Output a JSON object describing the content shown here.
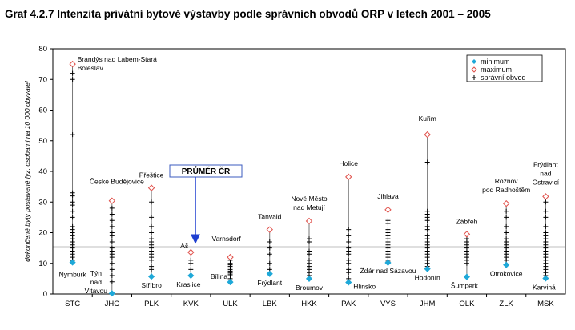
{
  "chart_data": {
    "type": "scatter",
    "title": "Graf 4.2.7 Intenzita privátní bytové výstavby podle správních obvodů ORP v letech 2001 – 2005",
    "ylabel": "dokončené byty postavené fyz. osobami na 10 000 obyvatel",
    "ylim": [
      0,
      80
    ],
    "yticks": [
      0,
      10,
      20,
      30,
      40,
      50,
      60,
      70,
      80
    ],
    "grid": false,
    "legend_position": "top-right",
    "categories": [
      "STC",
      "JHC",
      "PLK",
      "KVK",
      "ULK",
      "LBK",
      "HKK",
      "PAK",
      "VYS",
      "JHM",
      "OLK",
      "ZLK",
      "MSK"
    ],
    "average": {
      "label": "PRŮMĚR ČR",
      "value": 15.3
    },
    "series": [
      {
        "name": "minimum",
        "values": [
          10.3,
          0.2,
          5.7,
          6.0,
          3.9,
          6.6,
          5.0,
          3.8,
          10.2,
          8.2,
          5.6,
          9.5,
          5.1
        ]
      },
      {
        "name": "maximum",
        "values": [
          75.0,
          30.4,
          34.6,
          13.6,
          12.0,
          21.0,
          23.8,
          38.2,
          27.5,
          52.0,
          19.5,
          29.5,
          31.8
        ]
      },
      {
        "name": "správní obvod",
        "values": [
          [
            72,
            70,
            52,
            33,
            32,
            30,
            29,
            27,
            25,
            22,
            21,
            20,
            19,
            18,
            17,
            17,
            16,
            15,
            14,
            13,
            12,
            11,
            11
          ],
          [
            28,
            26,
            24,
            22,
            20,
            19,
            17,
            15,
            14,
            13,
            12,
            10,
            8,
            6,
            4
          ],
          [
            30,
            25,
            22,
            20,
            18,
            17,
            16,
            15,
            14,
            13,
            12,
            11,
            9,
            8
          ],
          [
            11,
            10,
            8
          ],
          [
            11,
            10,
            9.5,
            9,
            8.5,
            8,
            7.5,
            7,
            6.5,
            6,
            5
          ],
          [
            17,
            15,
            13,
            10,
            8
          ],
          [
            18,
            17,
            14,
            13,
            11,
            10,
            9,
            8,
            7,
            6
          ],
          [
            21,
            19,
            17,
            15,
            14,
            13,
            11,
            10,
            8,
            7,
            5
          ],
          [
            24,
            23,
            21,
            20,
            19,
            18,
            17,
            16,
            15,
            14,
            13,
            12,
            11,
            10.5
          ],
          [
            43,
            27,
            26,
            25,
            24,
            22,
            21,
            19,
            18,
            17,
            16,
            15,
            14,
            13,
            12,
            11,
            10,
            9
          ],
          [
            18,
            17,
            16,
            15,
            14,
            13,
            12,
            11,
            10
          ],
          [
            27,
            25,
            22,
            20,
            18,
            17,
            16,
            15,
            14,
            13,
            12,
            11
          ],
          [
            30,
            27,
            25,
            22,
            20,
            19,
            18,
            17,
            16,
            15,
            14,
            13,
            12,
            11,
            10,
            9,
            8,
            7,
            6
          ]
        ]
      }
    ],
    "annotations": {
      "max": [
        "Brandýs nad Labem-Stará\nBoleslav",
        "České Budějovice",
        "Přeštice",
        "Aš",
        "Varnsdorf",
        "Tanvald",
        "Nové Město\nnad Metují",
        "Holice",
        "Jihlava",
        "Kuřim",
        "Zábřeh",
        "Rožnov\npod Radhoštěm",
        "Frýdlant\nnad\nOstravicí"
      ],
      "min": [
        "Nymburk",
        "Týn\nnad\nVltavou",
        "Stříbro",
        "Kraslice",
        "Bílina",
        "Frýdlant",
        "Broumov",
        "Hlinsko",
        "Žďár nad Sázavou",
        "Hodonín",
        "Šumperk",
        "Otrokovice",
        "Karviná"
      ]
    }
  }
}
